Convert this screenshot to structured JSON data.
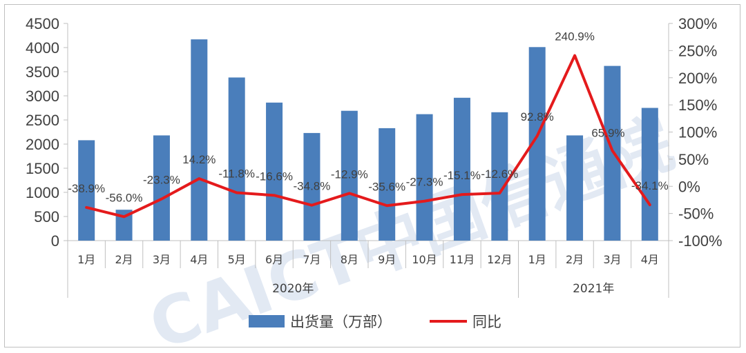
{
  "chart_data": {
    "type": "bar",
    "categories": [
      "1月",
      "2月",
      "3月",
      "4月",
      "5月",
      "6月",
      "7月",
      "8月",
      "9月",
      "10月",
      "11月",
      "12月",
      "1月",
      "2月",
      "3月",
      "4月"
    ],
    "groups": [
      {
        "label": "2020年",
        "count": 12
      },
      {
        "label": "2021年",
        "count": 4
      }
    ],
    "series": [
      {
        "name": "出货量（万部）",
        "type": "bar",
        "axis": "left",
        "color": "#4a7ebb",
        "values": [
          2080,
          640,
          2180,
          4170,
          3380,
          2860,
          2230,
          2690,
          2330,
          2620,
          2960,
          2660,
          4010,
          2180,
          3620,
          2750
        ]
      },
      {
        "name": "同比",
        "type": "line",
        "axis": "right",
        "color": "#e41a1c",
        "values": [
          -38.9,
          -56.0,
          -23.3,
          14.2,
          -11.8,
          -16.6,
          -34.8,
          -12.9,
          -35.6,
          -27.3,
          -15.1,
          -12.6,
          92.8,
          240.9,
          65.9,
          -34.1
        ],
        "labels": [
          "-38.9%",
          "-56.0%",
          "-23.3%",
          "14.2%",
          "-11.8%",
          "-16.6%",
          "-34.8%",
          "-12.9%",
          "-35.6%",
          "-27.3%",
          "-15.1%",
          "-12.6%",
          "92.8%",
          "240.9%",
          "65.9%",
          "-34.1%"
        ]
      }
    ],
    "y_left": {
      "min": 0,
      "max": 4500,
      "ticks": [
        "0",
        "500",
        "1000",
        "1500",
        "2000",
        "2500",
        "3000",
        "3500",
        "4000",
        "4500"
      ]
    },
    "y_right": {
      "min": -100,
      "max": 300,
      "ticks": [
        "-100%",
        "-50%",
        "0%",
        "50%",
        "100%",
        "150%",
        "200%",
        "250%",
        "300%"
      ]
    },
    "legend_position": "bottom",
    "grid": false,
    "watermark": "CAICT中国信通院"
  }
}
